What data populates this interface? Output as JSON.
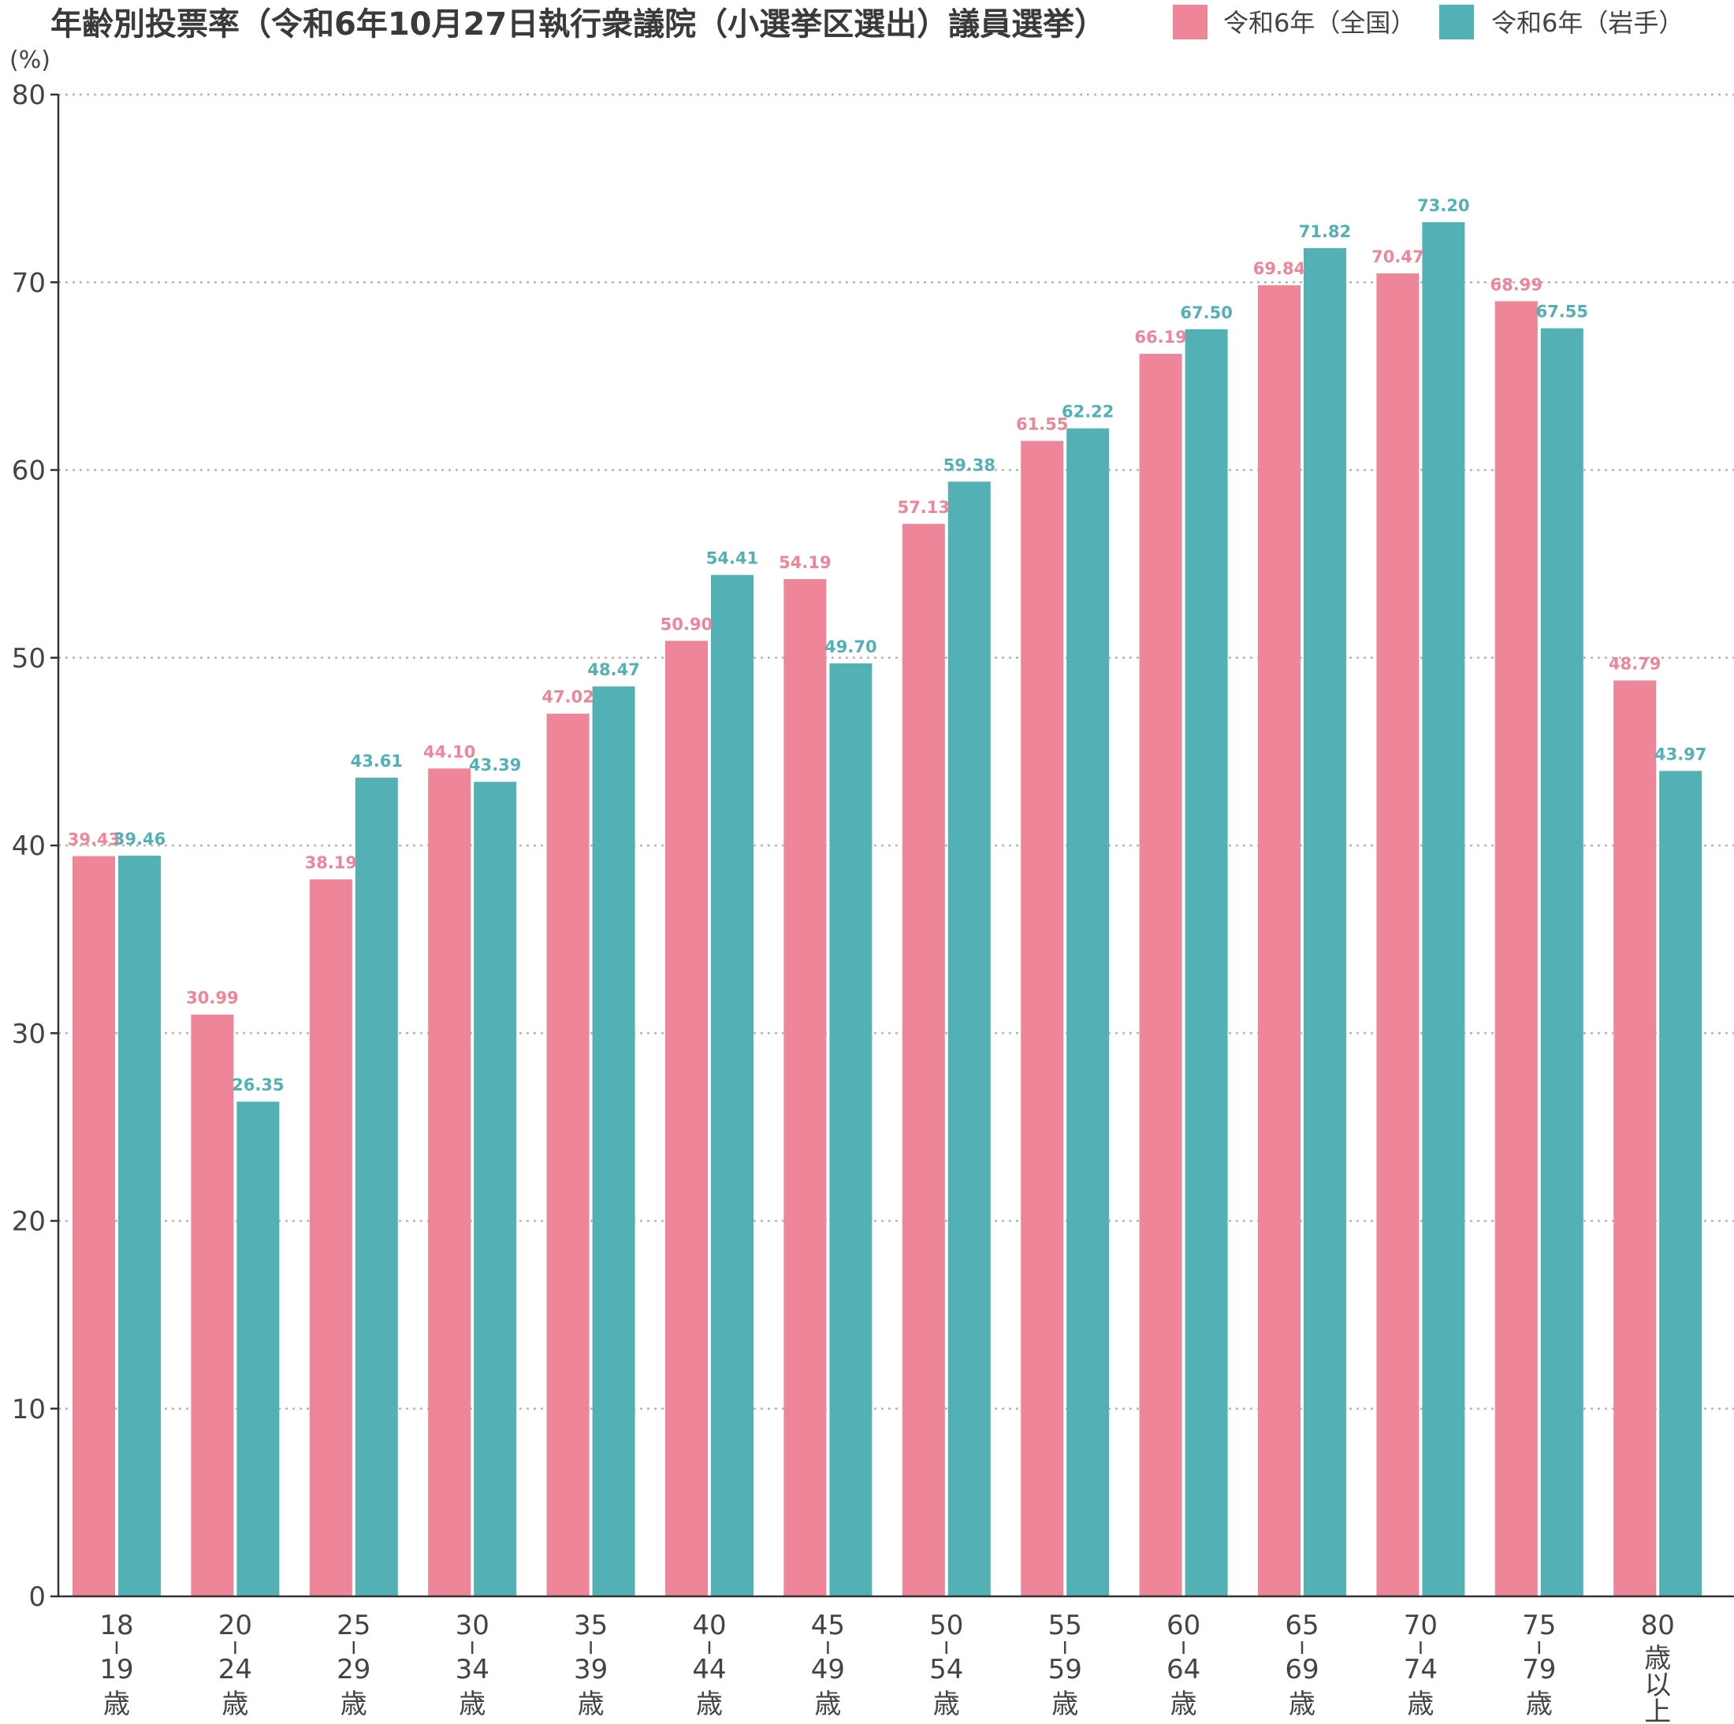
{
  "chart_data": {
    "type": "bar",
    "title": "年齢別投票率（令和6年10月27日執行衆議院（小選挙区選出）議員選挙）",
    "ylabel": "(%)",
    "ylim": [
      0,
      80
    ],
    "yticks": [
      0,
      10,
      20,
      30,
      40,
      50,
      60,
      70,
      80
    ],
    "grid": true,
    "legend_position": "top-right",
    "categories": [
      [
        "18",
        "|",
        "19",
        "歳"
      ],
      [
        "20",
        "|",
        "24",
        "歳"
      ],
      [
        "25",
        "|",
        "29",
        "歳"
      ],
      [
        "30",
        "|",
        "34",
        "歳"
      ],
      [
        "35",
        "|",
        "39",
        "歳"
      ],
      [
        "40",
        "|",
        "44",
        "歳"
      ],
      [
        "45",
        "|",
        "49",
        "歳"
      ],
      [
        "50",
        "|",
        "54",
        "歳"
      ],
      [
        "55",
        "|",
        "59",
        "歳"
      ],
      [
        "60",
        "|",
        "64",
        "歳"
      ],
      [
        "65",
        "|",
        "69",
        "歳"
      ],
      [
        "70",
        "|",
        "74",
        "歳"
      ],
      [
        "75",
        "|",
        "79",
        "歳"
      ],
      [
        "80",
        "歳",
        "以",
        "上"
      ]
    ],
    "series": [
      {
        "name": "令和6年（全国）",
        "color": "#ee8598",
        "values": [
          39.43,
          30.99,
          38.19,
          44.1,
          47.02,
          50.9,
          54.19,
          57.13,
          61.55,
          66.19,
          69.84,
          70.47,
          68.99,
          48.79
        ],
        "labels": [
          "39.43",
          "30.99",
          "38.19",
          "44.10",
          "47.02",
          "50.90",
          "54.19",
          "57.13",
          "61.55",
          "66.19",
          "69.84",
          "70.47",
          "68.99",
          "48.79"
        ]
      },
      {
        "name": "令和6年（岩手）",
        "color": "#53b1b6",
        "values": [
          39.46,
          26.35,
          43.61,
          43.39,
          48.47,
          54.41,
          49.7,
          59.38,
          62.22,
          67.5,
          71.82,
          73.2,
          67.55,
          43.97
        ],
        "labels": [
          "39.46",
          "26.35",
          "43.61",
          "43.39",
          "48.47",
          "54.41",
          "49.70",
          "59.38",
          "62.22",
          "67.50",
          "71.82",
          "73.20",
          "67.55",
          "43.97"
        ]
      }
    ]
  }
}
